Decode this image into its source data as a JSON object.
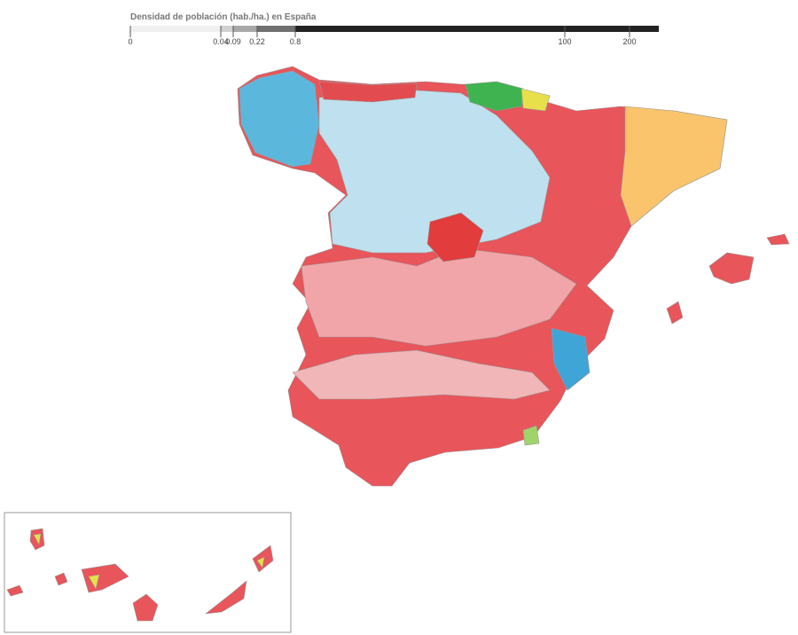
{
  "legend": {
    "title": "Densidad de población (hab./ha.) en España",
    "ticks": [
      0,
      0.04,
      0.09,
      0.22,
      0.8,
      100,
      200
    ],
    "colors": [
      "#f0f0f0",
      "#d0d0d0",
      "#a8a8a8",
      "#707070",
      "#222222"
    ]
  }
}
